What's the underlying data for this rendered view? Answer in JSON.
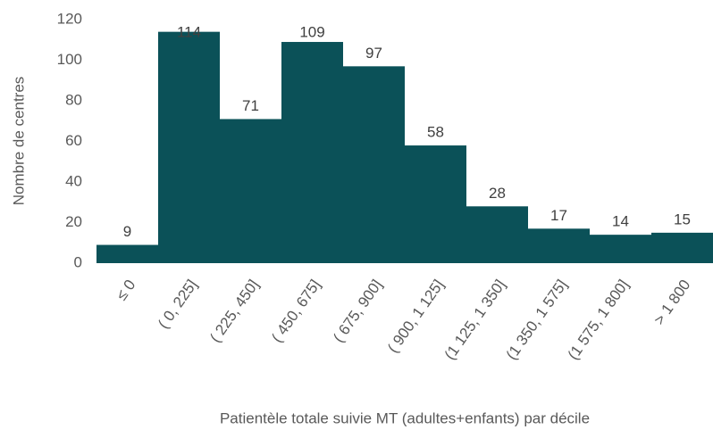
{
  "chart_data": {
    "type": "bar",
    "x_label": "Patientèle totale suivie MT (adultes+enfants) par décile",
    "y_label": "Nombre de centres",
    "categories": [
      "≤ 0",
      "( 0, 225]",
      "( 225, 450]",
      "( 450, 675]",
      "( 675, 900]",
      "( 900, 1 125]",
      "(1 125, 1 350]",
      "(1 350, 1 575]",
      "(1 575, 1 800]",
      "> 1 800"
    ],
    "values": [
      9,
      114,
      71,
      109,
      97,
      58,
      28,
      17,
      14,
      15
    ],
    "color": "#0b5158",
    "ylim": [
      0,
      120
    ],
    "yticks": [
      0,
      20,
      40,
      60,
      80,
      100,
      120
    ],
    "grid": false
  }
}
